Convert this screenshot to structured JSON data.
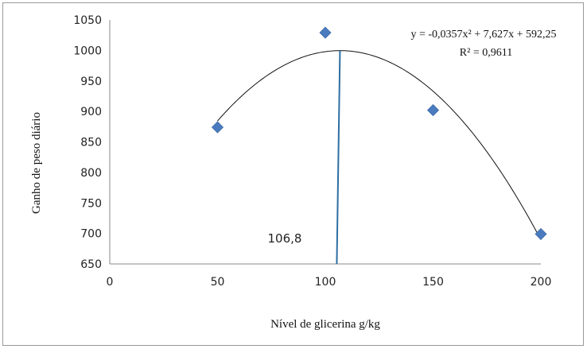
{
  "chart_data": {
    "type": "scatter",
    "xlabel": "Nível de glicerina g/kg",
    "ylabel": "Ganho de peso diário",
    "xlim": [
      0,
      200
    ],
    "ylim": [
      650,
      1050
    ],
    "xticks": [
      0,
      50,
      100,
      150,
      200
    ],
    "yticks": [
      650,
      700,
      750,
      800,
      850,
      900,
      950,
      1000,
      1050
    ],
    "series": [
      {
        "points": [
          {
            "x": 50,
            "y": 874
          },
          {
            "x": 100,
            "y": 1029
          },
          {
            "x": 150,
            "y": 902
          },
          {
            "x": 200,
            "y": 699
          }
        ],
        "marker": "diamond",
        "color": "#4a7bbf"
      }
    ],
    "trendline": {
      "type": "polynomial",
      "coefficients": [
        -0.0357,
        7.627,
        592.25
      ],
      "x_range": [
        50,
        200
      ],
      "color": "#111111"
    },
    "equation": "y = -0,0357x² + 7,627x + 592,25",
    "r_squared": "R² = 0,9611",
    "vline": {
      "x": 106.8,
      "color": "#2d6ea3"
    },
    "vline_label": "106,8",
    "grid": false
  }
}
